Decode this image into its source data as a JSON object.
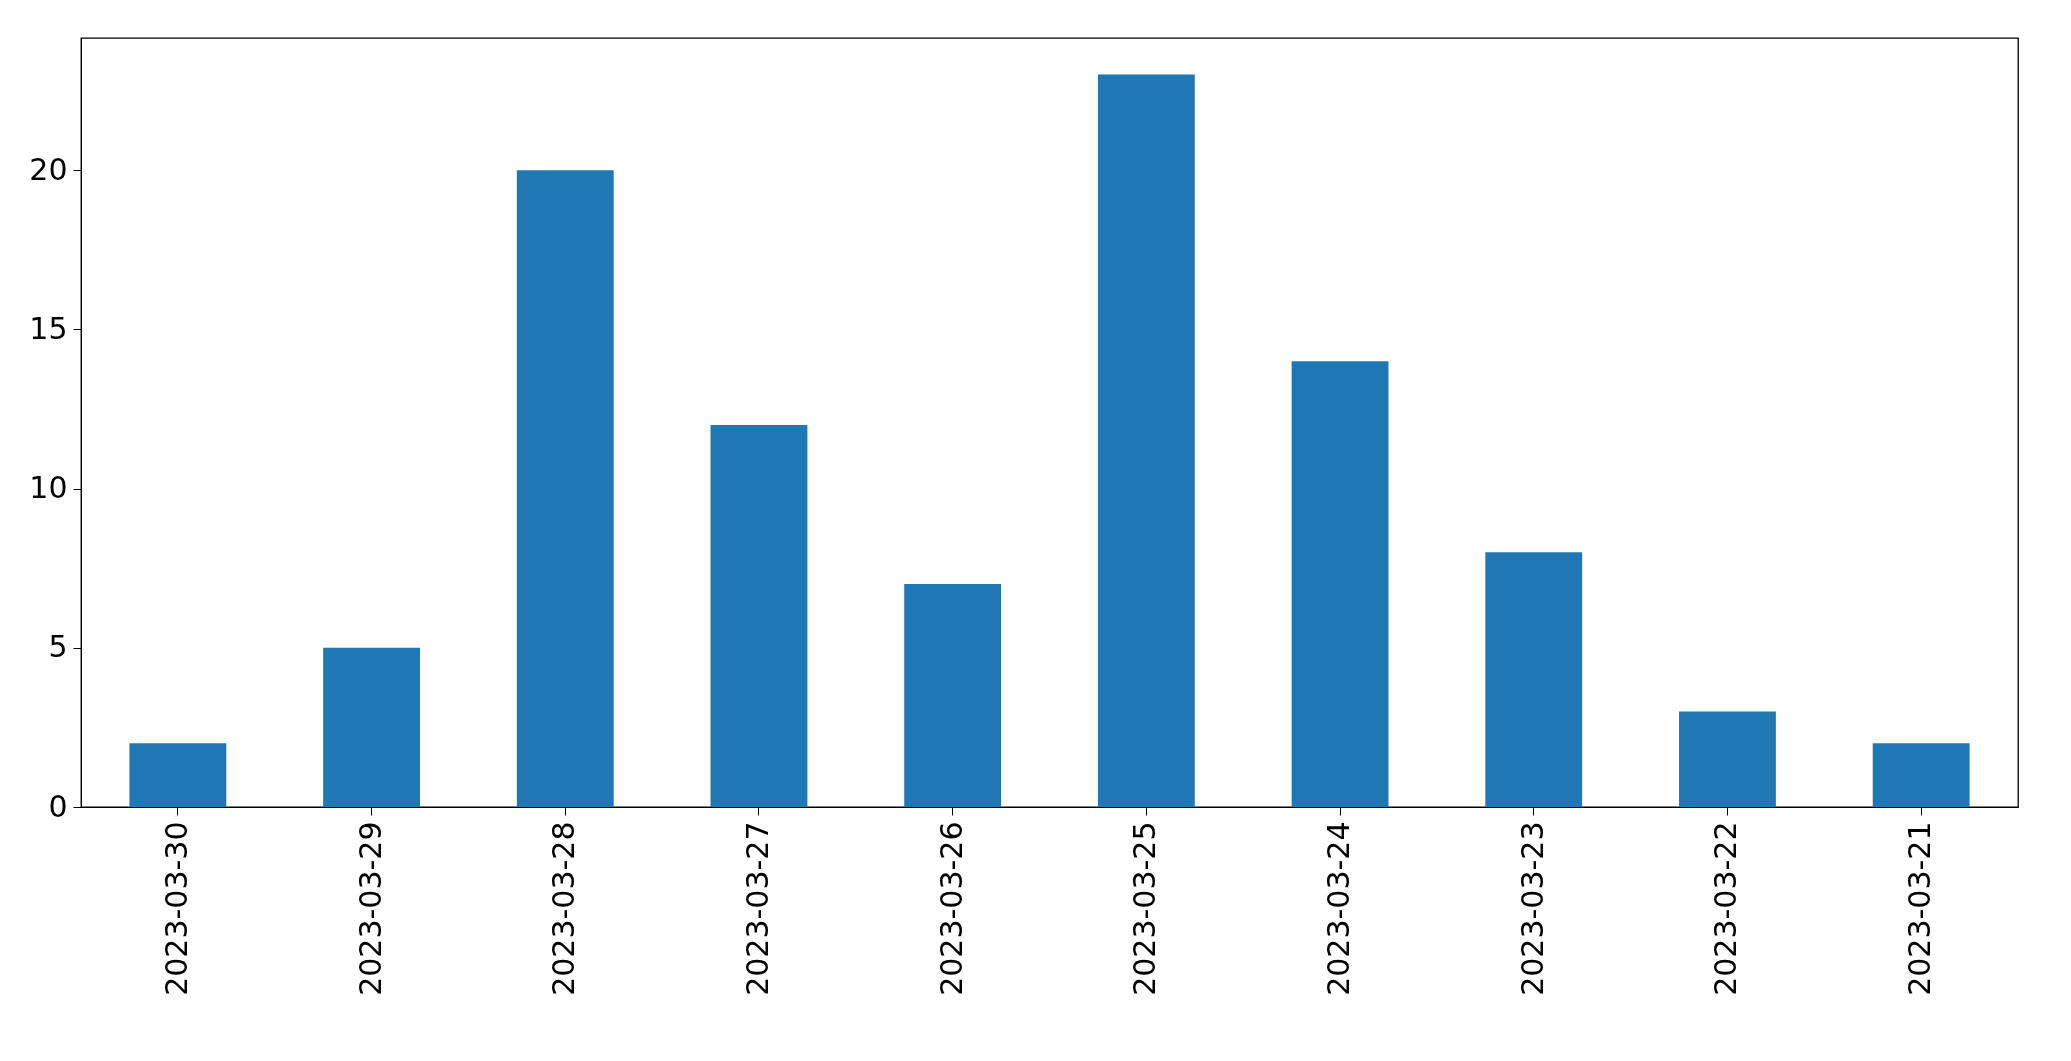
{
  "chart_data": {
    "type": "bar",
    "categories": [
      "2023-03-30",
      "2023-03-29",
      "2023-03-28",
      "2023-03-27",
      "2023-03-26",
      "2023-03-25",
      "2023-03-24",
      "2023-03-23",
      "2023-03-22",
      "2023-03-21"
    ],
    "values": [
      2,
      5,
      20,
      12,
      7,
      23,
      14,
      8,
      3,
      2
    ],
    "color": "#1f77b4",
    "ylim": [
      0,
      24.15
    ],
    "yticks": [
      0,
      5,
      10,
      15,
      20
    ],
    "grid": false
  }
}
